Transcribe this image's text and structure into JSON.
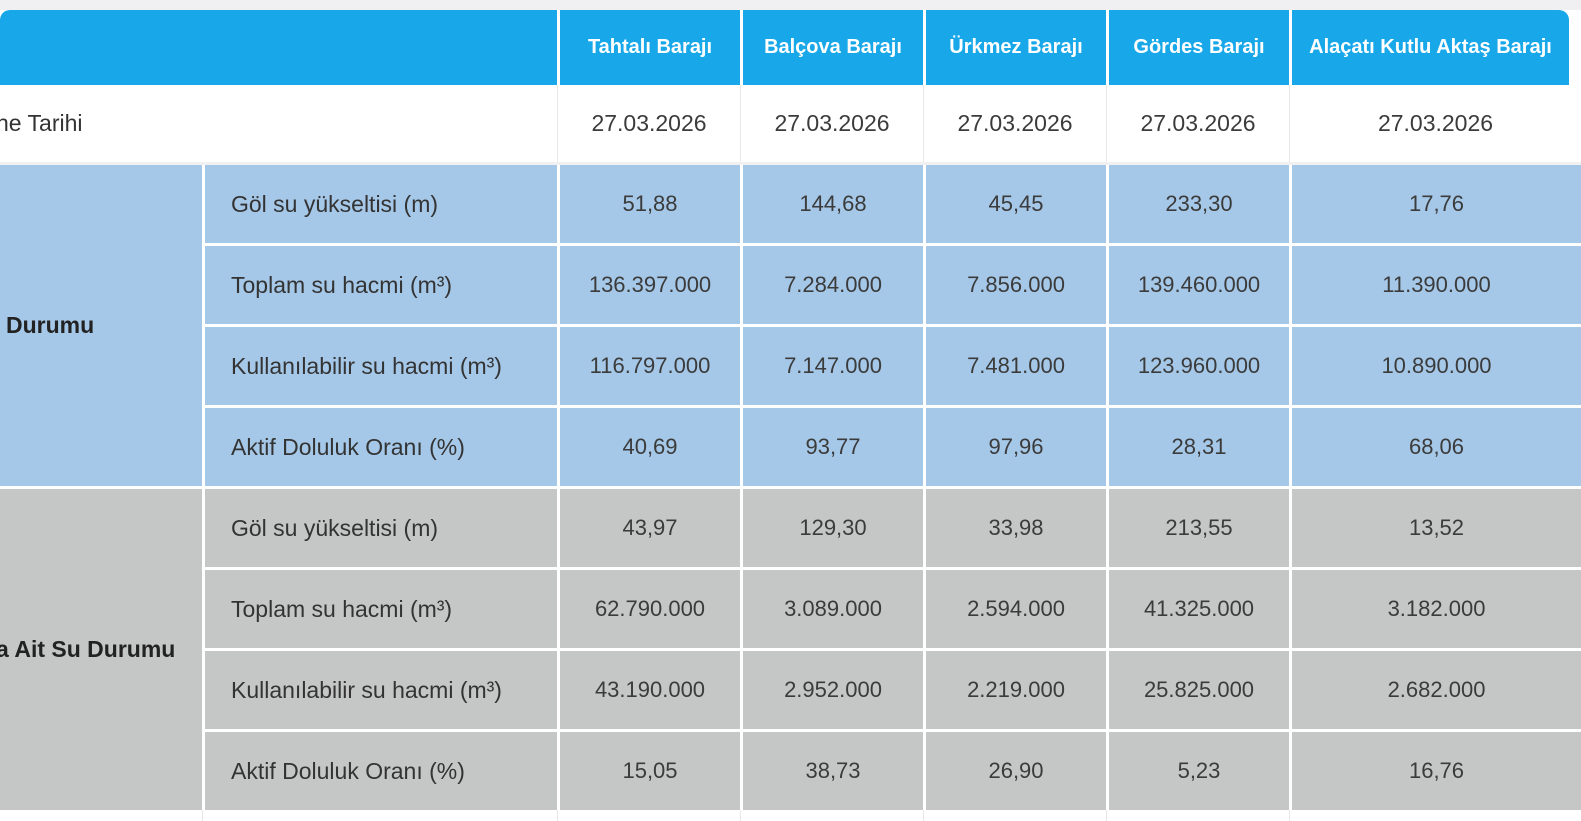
{
  "colors": {
    "header_blue": "#18a8e9",
    "section_blue": "#a5c8e8",
    "section_gray": "#c5c6c6",
    "page_top_strip": "#f0f0f2",
    "separator": "#e8e8e8",
    "header_text": "#ffffff",
    "body_text": "#3b3b3b"
  },
  "table": {
    "columns": [
      "Tahtalı Barajı",
      "Balçova Barajı",
      "Ürkmez Barajı",
      "Gördes Barajı",
      "Alaçatı Kutlu Aktaş Barajı"
    ],
    "date_row": {
      "label": "ne Tarihi",
      "values": [
        "27.03.2026",
        "27.03.2026",
        "27.03.2026",
        "27.03.2026",
        "27.03.2026"
      ]
    },
    "sections": [
      {
        "label": "Durumu",
        "rows": [
          {
            "label": "Göl su yükseltisi (m)",
            "values": [
              "51,88",
              "144,68",
              "45,45",
              "233,30",
              "17,76"
            ]
          },
          {
            "label": "Toplam su hacmi (m³)",
            "values": [
              "136.397.000",
              "7.284.000",
              "7.856.000",
              "139.460.000",
              "11.390.000"
            ]
          },
          {
            "label": "Kullanılabilir su hacmi (m³)",
            "values": [
              "116.797.000",
              "7.147.000",
              "7.481.000",
              "123.960.000",
              "10.890.000"
            ]
          },
          {
            "label": "Aktif Doluluk Oranı (%)",
            "values": [
              "40,69",
              "93,77",
              "97,96",
              "28,31",
              "68,06"
            ]
          }
        ]
      },
      {
        "label": "a Ait Su Durumu",
        "rows": [
          {
            "label": "Göl su yükseltisi (m)",
            "values": [
              "43,97",
              "129,30",
              "33,98",
              "213,55",
              "13,52"
            ]
          },
          {
            "label": "Toplam su hacmi (m³)",
            "values": [
              "62.790.000",
              "3.089.000",
              "2.594.000",
              "41.325.000",
              "3.182.000"
            ]
          },
          {
            "label": "Kullanılabilir su hacmi (m³)",
            "values": [
              "43.190.000",
              "2.952.000",
              "2.219.000",
              "25.825.000",
              "2.682.000"
            ]
          },
          {
            "label": "Aktif Doluluk Oranı (%)",
            "values": [
              "15,05",
              "38,73",
              "26,90",
              "5,23",
              "16,76"
            ]
          }
        ]
      }
    ]
  }
}
